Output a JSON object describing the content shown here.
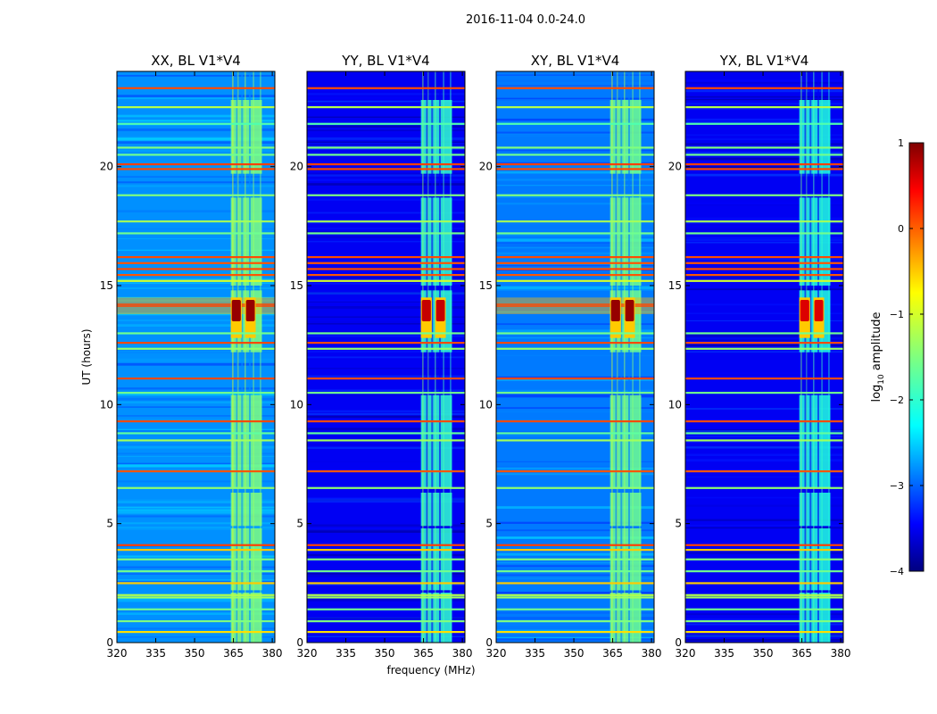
{
  "suptitle": "2016-11-04 0.0-24.0",
  "chart_data": {
    "type": "heatmap",
    "colormap": "jet",
    "panels": [
      {
        "title": "XX, BL V1*V4",
        "xlabel": "",
        "ylabel": "UT (hours)",
        "xlim": [
          320,
          381
        ],
        "ylim": [
          0,
          24
        ],
        "xticks": [
          320,
          335,
          350,
          365,
          380
        ],
        "yticks": [
          0,
          5,
          10,
          15,
          20
        ],
        "background_level": -2.8,
        "bright_rfi_band_MHz": [
          364,
          376
        ],
        "bright_rfi_level": -1.5,
        "burst_hours": [
          12.8,
          14.5
        ],
        "burst_peak_level": 0.9,
        "wideband_flare_hours": [
          13.8,
          14.5
        ]
      },
      {
        "title": "YY, BL V1*V4",
        "xlabel": "frequency (MHz)",
        "ylabel": "",
        "xlim": [
          320,
          381
        ],
        "ylim": [
          0,
          24
        ],
        "xticks": [
          320,
          335,
          350,
          365,
          380
        ],
        "yticks": [
          0,
          5,
          10,
          15,
          20
        ],
        "background_level": -3.5,
        "bright_rfi_band_MHz": [
          364,
          376
        ],
        "bright_rfi_level": -2.0,
        "burst_hours": [
          12.8,
          14.5
        ],
        "burst_peak_level": 0.7,
        "wideband_flare_hours": null
      },
      {
        "title": "XY, BL V1*V4",
        "xlabel": "",
        "ylabel": "",
        "xlim": [
          320,
          381
        ],
        "ylim": [
          0,
          24
        ],
        "xticks": [
          320,
          335,
          350,
          365,
          380
        ],
        "yticks": [
          0,
          5,
          10,
          15,
          20
        ],
        "background_level": -2.9,
        "bright_rfi_band_MHz": [
          364,
          376
        ],
        "bright_rfi_level": -1.6,
        "burst_hours": [
          12.8,
          14.5
        ],
        "burst_peak_level": 0.9,
        "wideband_flare_hours": [
          13.8,
          14.5
        ]
      },
      {
        "title": "YX, BL V1*V4",
        "xlabel": "",
        "ylabel": "",
        "xlim": [
          320,
          381
        ],
        "ylim": [
          0,
          24
        ],
        "xticks": [
          320,
          335,
          350,
          365,
          380
        ],
        "yticks": [
          0,
          5,
          10,
          15,
          20
        ],
        "background_level": -3.5,
        "bright_rfi_band_MHz": [
          364,
          376
        ],
        "bright_rfi_level": -2.1,
        "burst_hours": [
          12.8,
          14.5
        ],
        "burst_peak_level": 0.6,
        "wideband_flare_hours": null
      }
    ],
    "horizontal_rfi_lines": [
      {
        "hour": 23.3,
        "level": 0.1
      },
      {
        "hour": 22.5,
        "level": -1.2
      },
      {
        "hour": 21.8,
        "level": -1.8
      },
      {
        "hour": 20.8,
        "level": -1.5
      },
      {
        "hour": 20.5,
        "level": -1.6
      },
      {
        "hour": 20.1,
        "level": 0.15
      },
      {
        "hour": 19.9,
        "level": 0.1
      },
      {
        "hour": 18.8,
        "level": -1.5
      },
      {
        "hour": 17.7,
        "level": -1.3
      },
      {
        "hour": 17.2,
        "level": -1.6
      },
      {
        "hour": 16.2,
        "level": 0.1
      },
      {
        "hour": 15.95,
        "level": 0.05
      },
      {
        "hour": 15.7,
        "level": 0.1
      },
      {
        "hour": 15.45,
        "level": 0.05
      },
      {
        "hour": 15.2,
        "level": -1.0
      },
      {
        "hour": 13.0,
        "level": -1.6
      },
      {
        "hour": 12.6,
        "level": 0.1
      },
      {
        "hour": 12.35,
        "level": -1.4
      },
      {
        "hour": 11.1,
        "level": 0.1
      },
      {
        "hour": 10.5,
        "level": -1.6
      },
      {
        "hour": 9.3,
        "level": 0.1
      },
      {
        "hour": 8.8,
        "level": -1.7
      },
      {
        "hour": 8.5,
        "level": -1.3
      },
      {
        "hour": 7.2,
        "level": 0.05
      },
      {
        "hour": 6.5,
        "level": -1.4
      },
      {
        "hour": 4.1,
        "level": 0.15
      },
      {
        "hour": 3.9,
        "level": -0.5
      },
      {
        "hour": 3.5,
        "level": -1.5
      },
      {
        "hour": 3.0,
        "level": -1.6
      },
      {
        "hour": 2.5,
        "level": -0.5
      },
      {
        "hour": 2.0,
        "level": -1.2
      },
      {
        "hour": 1.9,
        "level": -1.3
      },
      {
        "hour": 1.4,
        "level": -1.6
      },
      {
        "hour": 0.9,
        "level": -1.5
      },
      {
        "hour": 0.45,
        "level": -0.6
      }
    ],
    "colorbar": {
      "label": "log₁₀ amplitude",
      "label_base": "log",
      "label_sub": "10",
      "label_rest": " amplitude",
      "vmin": -4,
      "vmax": 1,
      "ticks": [
        1,
        0,
        -1,
        -2,
        -3,
        -4
      ],
      "tick_labels": [
        "1",
        "0",
        "−1",
        "−2",
        "−3",
        "−4"
      ]
    }
  }
}
